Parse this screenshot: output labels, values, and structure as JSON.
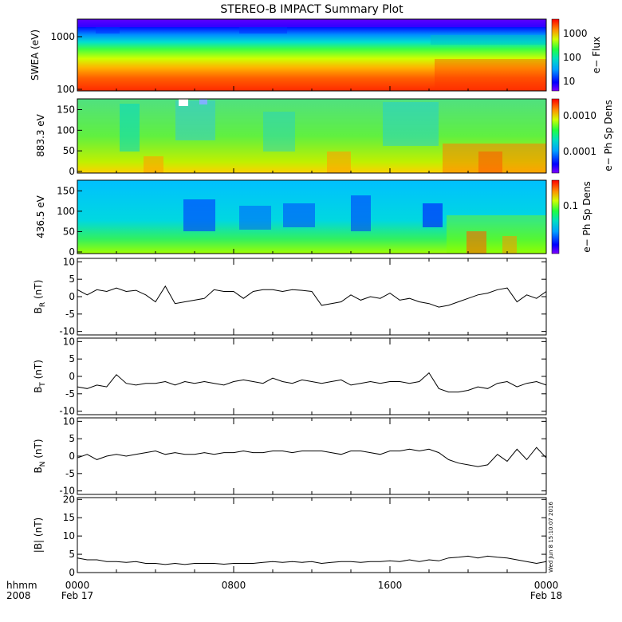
{
  "title": "STEREO-B IMPACT Summary Plot",
  "x_axis": {
    "ticks": [
      "0000",
      "0800",
      "1600",
      "0000"
    ],
    "row_label": "hhmm",
    "year": "2008",
    "start_date": "Feb 17",
    "end_date": "Feb 18"
  },
  "timestamp": "Wed Jun 8 15:10:07 2016",
  "chart_data": [
    {
      "type": "heatmap",
      "name": "swea",
      "ylabel": "SWEA (eV)",
      "yscale": "log",
      "ylim": [
        100,
        2000
      ],
      "yticks": [
        "1000",
        "100"
      ],
      "colorbar_label": "e− Flux",
      "colorbar_ticks": [
        "1000",
        "100",
        "10"
      ],
      "colorbar_scale": "log",
      "colorbar_range": [
        3,
        3000
      ]
    },
    {
      "type": "heatmap",
      "name": "pad_883",
      "ylabel": "883.3 eV",
      "ylim": [
        0,
        180
      ],
      "yticks": [
        "150",
        "100",
        "50",
        "0"
      ],
      "colorbar_label": "e− Ph Sp Dens",
      "colorbar_ticks": [
        "0.0010",
        "0.0001"
      ],
      "colorbar_scale": "log",
      "colorbar_range": [
        3e-05,
        0.003
      ]
    },
    {
      "type": "heatmap",
      "name": "pad_436",
      "ylabel": "436.5 eV",
      "ylim": [
        0,
        180
      ],
      "yticks": [
        "150",
        "100",
        "50",
        "0"
      ],
      "colorbar_label": "e− Ph Sp Dens",
      "colorbar_ticks": [
        "0.1"
      ],
      "colorbar_scale": "log",
      "colorbar_range": [
        0.003,
        0.15
      ]
    },
    {
      "type": "line",
      "name": "br",
      "ylabel_main": "B",
      "ylabel_sub": "R",
      "ylabel_unit": " (nT)",
      "ylim": [
        -11,
        11
      ],
      "yticks": [
        10,
        5,
        0,
        -5,
        -10
      ],
      "x": [
        0,
        0.5,
        1,
        1.5,
        2,
        2.5,
        3,
        3.5,
        4,
        4.5,
        5,
        5.5,
        6,
        6.5,
        7,
        7.5,
        8,
        8.5,
        9,
        9.5,
        10,
        10.5,
        11,
        11.5,
        12,
        12.5,
        13,
        13.5,
        14,
        14.5,
        15,
        15.5,
        16,
        16.5,
        17,
        17.5,
        18,
        18.5,
        19,
        19.5,
        20,
        20.5,
        21,
        21.5,
        22,
        22.5,
        23,
        23.5,
        24
      ],
      "y": [
        2,
        0.5,
        2,
        1.5,
        2.5,
        1.5,
        1.8,
        0.5,
        -1.5,
        3,
        -2,
        -1.5,
        -1,
        -0.5,
        2,
        1.5,
        1.5,
        -0.5,
        1.5,
        2,
        2,
        1.5,
        2,
        1.8,
        1.5,
        -2.5,
        -2,
        -1.5,
        0.5,
        -1,
        0,
        -0.5,
        1,
        -1,
        -0.5,
        -1.5,
        -2,
        -3,
        -2.5,
        -1.5,
        -0.5,
        0.5,
        1,
        2,
        2.5,
        -1.5,
        0.5,
        -0.5,
        1.5
      ]
    },
    {
      "type": "line",
      "name": "bt",
      "ylabel_main": "B",
      "ylabel_sub": "T",
      "ylabel_unit": " (nT)",
      "ylim": [
        -11,
        11
      ],
      "yticks": [
        10,
        5,
        0,
        -5,
        -10
      ],
      "x": [
        0,
        0.5,
        1,
        1.5,
        2,
        2.5,
        3,
        3.5,
        4,
        4.5,
        5,
        5.5,
        6,
        6.5,
        7,
        7.5,
        8,
        8.5,
        9,
        9.5,
        10,
        10.5,
        11,
        11.5,
        12,
        12.5,
        13,
        13.5,
        14,
        14.5,
        15,
        15.5,
        16,
        16.5,
        17,
        17.5,
        18,
        18.5,
        19,
        19.5,
        20,
        20.5,
        21,
        21.5,
        22,
        22.5,
        23,
        23.5,
        24
      ],
      "y": [
        -3,
        -3.5,
        -2.5,
        -3,
        0.5,
        -2,
        -2.5,
        -2,
        -2,
        -1.5,
        -2.5,
        -1.5,
        -2,
        -1.5,
        -2,
        -2.5,
        -1.5,
        -1,
        -1.5,
        -2,
        -0.5,
        -1.5,
        -2,
        -1,
        -1.5,
        -2,
        -1.5,
        -1,
        -2.5,
        -2,
        -1.5,
        -2,
        -1.5,
        -1.5,
        -2,
        -1.5,
        1,
        -3.5,
        -4.5,
        -4.5,
        -4,
        -3,
        -3.5,
        -2,
        -1.5,
        -3,
        -2,
        -1.5,
        -2.5
      ]
    },
    {
      "type": "line",
      "name": "bn",
      "ylabel_main": "B",
      "ylabel_sub": "N",
      "ylabel_unit": " (nT)",
      "ylim": [
        -11,
        11
      ],
      "yticks": [
        10,
        5,
        0,
        -5,
        -10
      ],
      "x": [
        0,
        0.5,
        1,
        1.5,
        2,
        2.5,
        3,
        3.5,
        4,
        4.5,
        5,
        5.5,
        6,
        6.5,
        7,
        7.5,
        8,
        8.5,
        9,
        9.5,
        10,
        10.5,
        11,
        11.5,
        12,
        12.5,
        13,
        13.5,
        14,
        14.5,
        15,
        15.5,
        16,
        16.5,
        17,
        17.5,
        18,
        18.5,
        19,
        19.5,
        20,
        20.5,
        21,
        21.5,
        22,
        22.5,
        23,
        23.5,
        24
      ],
      "y": [
        -0.5,
        0.5,
        -1,
        0,
        0.5,
        0,
        0.5,
        1,
        1.5,
        0.5,
        1,
        0.5,
        0.5,
        1,
        0.5,
        1,
        1,
        1.5,
        1,
        1,
        1.5,
        1.5,
        1,
        1.5,
        1.5,
        1.5,
        1,
        0.5,
        1.5,
        1.5,
        1,
        0.5,
        1.5,
        1.5,
        2,
        1.5,
        2,
        1,
        -1,
        -2,
        -2.5,
        -3,
        -2.5,
        0.5,
        -1.5,
        2,
        -1,
        2.5,
        -0.5
      ]
    },
    {
      "type": "line",
      "name": "bmag",
      "ylabel_main": "|B| (nT)",
      "ylim": [
        0,
        20.5
      ],
      "yticks": [
        20,
        15,
        10,
        5,
        0
      ],
      "x": [
        0,
        0.5,
        1,
        1.5,
        2,
        2.5,
        3,
        3.5,
        4,
        4.5,
        5,
        5.5,
        6,
        6.5,
        7,
        7.5,
        8,
        8.5,
        9,
        9.5,
        10,
        10.5,
        11,
        11.5,
        12,
        12.5,
        13,
        13.5,
        14,
        14.5,
        15,
        15.5,
        16,
        16.5,
        17,
        17.5,
        18,
        18.5,
        19,
        19.5,
        20,
        20.5,
        21,
        21.5,
        22,
        22.5,
        23,
        23.5,
        24
      ],
      "y": [
        4,
        3.5,
        3.5,
        3,
        3,
        2.8,
        3,
        2.5,
        2.5,
        2.2,
        2.5,
        2.2,
        2.5,
        2.5,
        2.5,
        2.3,
        2.5,
        2.5,
        2.5,
        2.8,
        3,
        2.8,
        3,
        2.8,
        3,
        2.5,
        2.8,
        3,
        3,
        2.8,
        3,
        3,
        3.2,
        3,
        3.5,
        3,
        3.5,
        3.2,
        4,
        4.2,
        4.5,
        4,
        4.5,
        4.2,
        4,
        3.5,
        3,
        2.5,
        3
      ]
    }
  ]
}
